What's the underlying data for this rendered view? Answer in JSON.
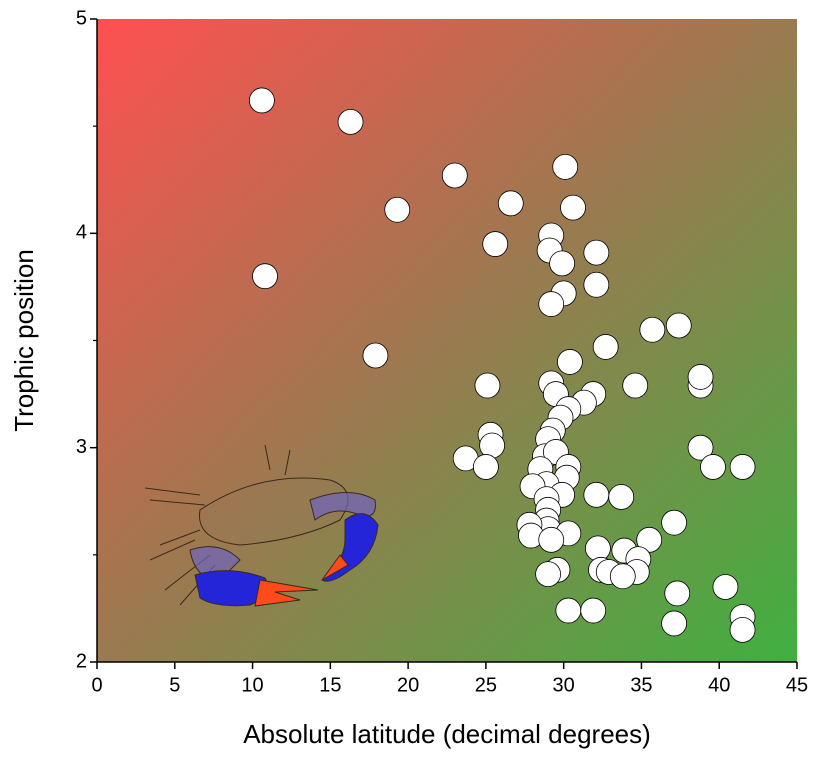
{
  "chart_data": {
    "type": "scatter",
    "xlabel": "Absolute latitude (decimal degrees)",
    "ylabel": "Trophic position",
    "xlim": [
      0,
      45
    ],
    "ylim": [
      2,
      5
    ],
    "xticks": [
      0,
      5,
      10,
      15,
      20,
      25,
      30,
      35,
      40,
      45
    ],
    "yticks": [
      2,
      3,
      4,
      5
    ],
    "yminor": [
      2.5,
      3.5,
      4.5
    ],
    "color": "#ffffff",
    "x": [
      10.6,
      16.3,
      10.8,
      17.9,
      19.3,
      23.0,
      26.6,
      25.6,
      30.1,
      30.6,
      29.2,
      29.1,
      29.9,
      32.1,
      32.1,
      30.0,
      29.2,
      32.7,
      30.4,
      35.7,
      37.4,
      25.1,
      34.6,
      38.8,
      38.8,
      29.2,
      29.5,
      31.9,
      31.3,
      30.3,
      29.8,
      25.3,
      25.4,
      29.3,
      29.0,
      38.8,
      23.7,
      25.0,
      28.8,
      29.5,
      30.3,
      28.5,
      39.6,
      41.5,
      30.2,
      28.9,
      28.0,
      29.9,
      32.1,
      33.7,
      28.9,
      29.0,
      28.9,
      29.0,
      27.8,
      27.9,
      30.3,
      29.2,
      37.1,
      35.5,
      32.2,
      33.9,
      34.8,
      32.4,
      32.9,
      34.7,
      33.8,
      29.6,
      29.0,
      40.4,
      37.3,
      30.3,
      31.9,
      37.1,
      41.5,
      41.5
    ],
    "values": [
      4.62,
      4.52,
      3.8,
      3.43,
      4.11,
      4.27,
      4.14,
      3.95,
      4.31,
      4.12,
      3.99,
      3.92,
      3.86,
      3.91,
      3.76,
      3.72,
      3.67,
      3.47,
      3.4,
      3.55,
      3.57,
      3.29,
      3.29,
      3.29,
      3.33,
      3.3,
      3.25,
      3.25,
      3.21,
      3.18,
      3.14,
      3.06,
      3.01,
      3.08,
      3.04,
      3.0,
      2.95,
      2.91,
      2.96,
      2.98,
      2.91,
      2.9,
      2.91,
      2.91,
      2.86,
      2.83,
      2.82,
      2.78,
      2.78,
      2.77,
      2.76,
      2.71,
      2.66,
      2.62,
      2.64,
      2.59,
      2.6,
      2.57,
      2.65,
      2.57,
      2.53,
      2.52,
      2.48,
      2.43,
      2.42,
      2.42,
      2.4,
      2.43,
      2.41,
      2.35,
      2.32,
      2.24,
      2.24,
      2.18,
      2.21,
      2.15
    ]
  }
}
